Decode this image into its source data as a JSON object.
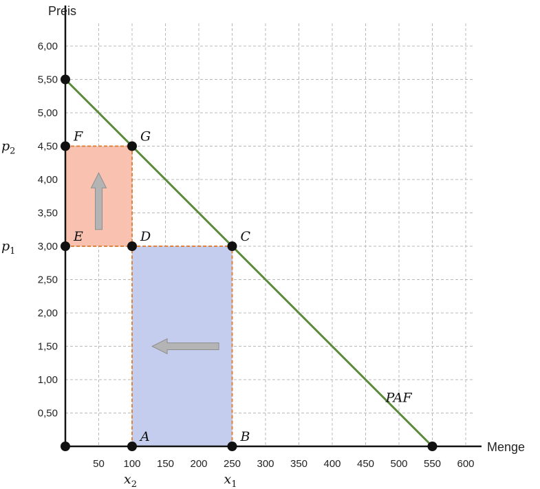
{
  "chart_data": {
    "type": "line",
    "xlabel": "Menge",
    "ylabel": "Preis",
    "xlim": [
      0,
      600
    ],
    "ylim": [
      0,
      6.0
    ],
    "x_ticks": [
      50,
      100,
      150,
      200,
      250,
      300,
      350,
      400,
      450,
      500,
      550,
      600
    ],
    "y_ticks": [
      0.5,
      1.0,
      1.5,
      2.0,
      2.5,
      3.0,
      3.5,
      4.0,
      4.5,
      5.0,
      5.5,
      6.0
    ],
    "x_tick_labels": [
      "50",
      "100",
      "150",
      "200",
      "250",
      "300",
      "350",
      "400",
      "450",
      "500",
      "550",
      "600"
    ],
    "y_tick_labels": [
      "0,50",
      "1,00",
      "1,50",
      "2,00",
      "2,50",
      "3,00",
      "3,50",
      "4,00",
      "4,50",
      "5,00",
      "5,50",
      "6,00"
    ],
    "grid": true,
    "series": [
      {
        "name": "PAF",
        "x": [
          0,
          550
        ],
        "y": [
          5.5,
          0
        ],
        "color": "#5a8a3a"
      }
    ],
    "points": [
      {
        "label": "A",
        "x": 100,
        "y": 0
      },
      {
        "label": "B",
        "x": 250,
        "y": 0
      },
      {
        "label": "C",
        "x": 250,
        "y": 3.0
      },
      {
        "label": "D",
        "x": 100,
        "y": 3.0
      },
      {
        "label": "E",
        "x": 0,
        "y": 3.0
      },
      {
        "label": "F",
        "x": 0,
        "y": 4.5
      },
      {
        "label": "G",
        "x": 100,
        "y": 4.5
      },
      {
        "label": "",
        "x": 0,
        "y": 0
      },
      {
        "label": "",
        "x": 0,
        "y": 5.5
      },
      {
        "label": "",
        "x": 550,
        "y": 0
      }
    ],
    "regions": [
      {
        "name": "revenue-gain",
        "x": [
          0,
          100
        ],
        "y": [
          3.0,
          4.5
        ],
        "color": "#f9c2b0"
      },
      {
        "name": "revenue-loss",
        "x": [
          100,
          250
        ],
        "y": [
          0,
          3.0
        ],
        "color": "#c5cdee"
      }
    ],
    "region_border_color": "#e0813a",
    "arrows": [
      {
        "name": "price-increase-arrow",
        "from": [
          50,
          3.25
        ],
        "to": [
          50,
          4.1
        ]
      },
      {
        "name": "quantity-decrease-arrow",
        "from": [
          230,
          1.5
        ],
        "to": [
          130,
          1.5
        ]
      }
    ],
    "axis_markers": {
      "x": [
        {
          "value": 100,
          "base": "x",
          "sub": "2"
        },
        {
          "value": 250,
          "base": "x",
          "sub": "1"
        }
      ],
      "y": [
        {
          "value": 4.5,
          "base": "p",
          "sub": "2"
        },
        {
          "value": 3.0,
          "base": "p",
          "sub": "1"
        }
      ]
    },
    "curve_label": {
      "text": "PAF",
      "x": 480,
      "y": 0.75
    }
  }
}
